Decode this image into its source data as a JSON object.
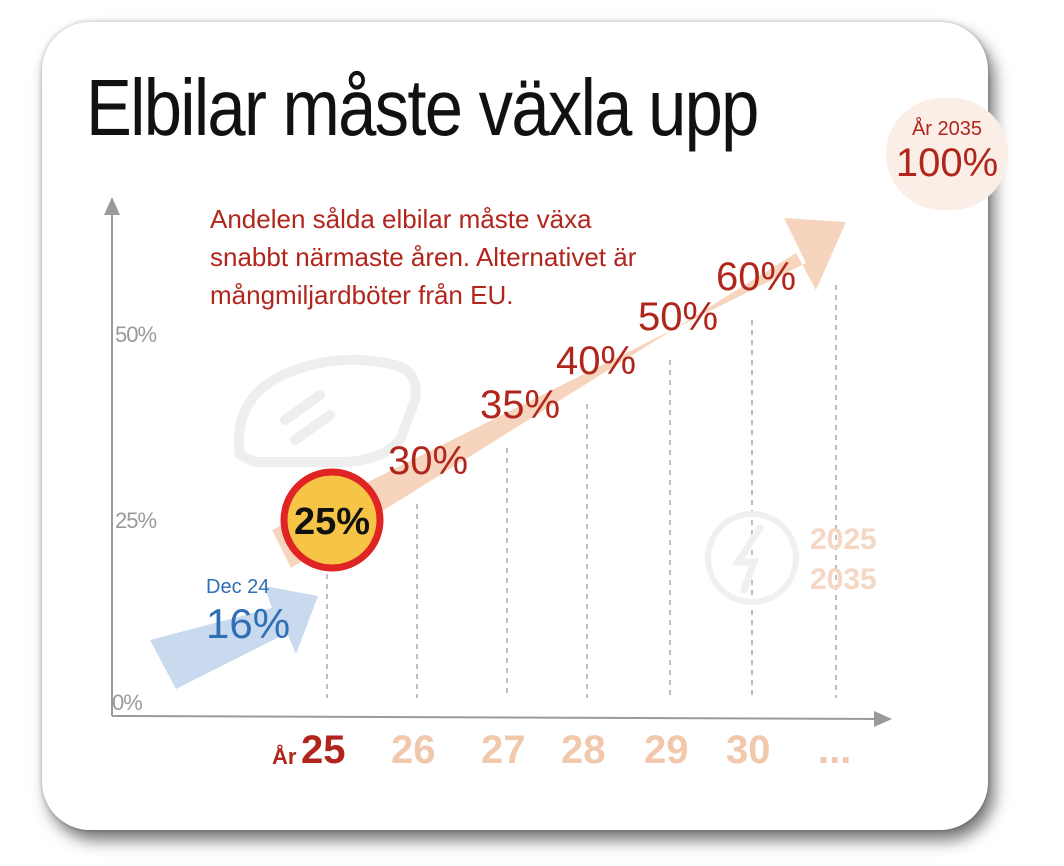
{
  "title": "Elbilar måste växla upp",
  "subtitle": "Andelen sålda elbilar måste växa snabbt närmaste åren. Alternativet är mångmiljardböter från EU.",
  "target": {
    "year_label": "År 2035",
    "value_label": "100%"
  },
  "current": {
    "label": "Dec 24",
    "value_label": "16%"
  },
  "watermark": {
    "line1": "2025",
    "line2": "2035"
  },
  "x_prefix": "År",
  "colors": {
    "accent": "#b1261c",
    "arrow": "#f6d4bd",
    "blue": "#2f6fb5",
    "blue_arrow": "#c9d9ee",
    "highlight_fill": "#f6c545",
    "highlight_ring": "#e02424",
    "muted_year": "#f2c8ac"
  },
  "chart_data": {
    "type": "line",
    "x": [
      "25",
      "26",
      "27",
      "28",
      "29",
      "30",
      "..."
    ],
    "values": [
      25,
      30,
      35,
      40,
      50,
      60,
      null
    ],
    "labels": [
      "25%",
      "30%",
      "35%",
      "40%",
      "50%",
      "60%",
      null
    ],
    "y_ticks": [
      "0%",
      "25%",
      "50%"
    ],
    "highlight_index": 0,
    "ylim": [
      0,
      60
    ],
    "grid": "vertical-dashed"
  }
}
